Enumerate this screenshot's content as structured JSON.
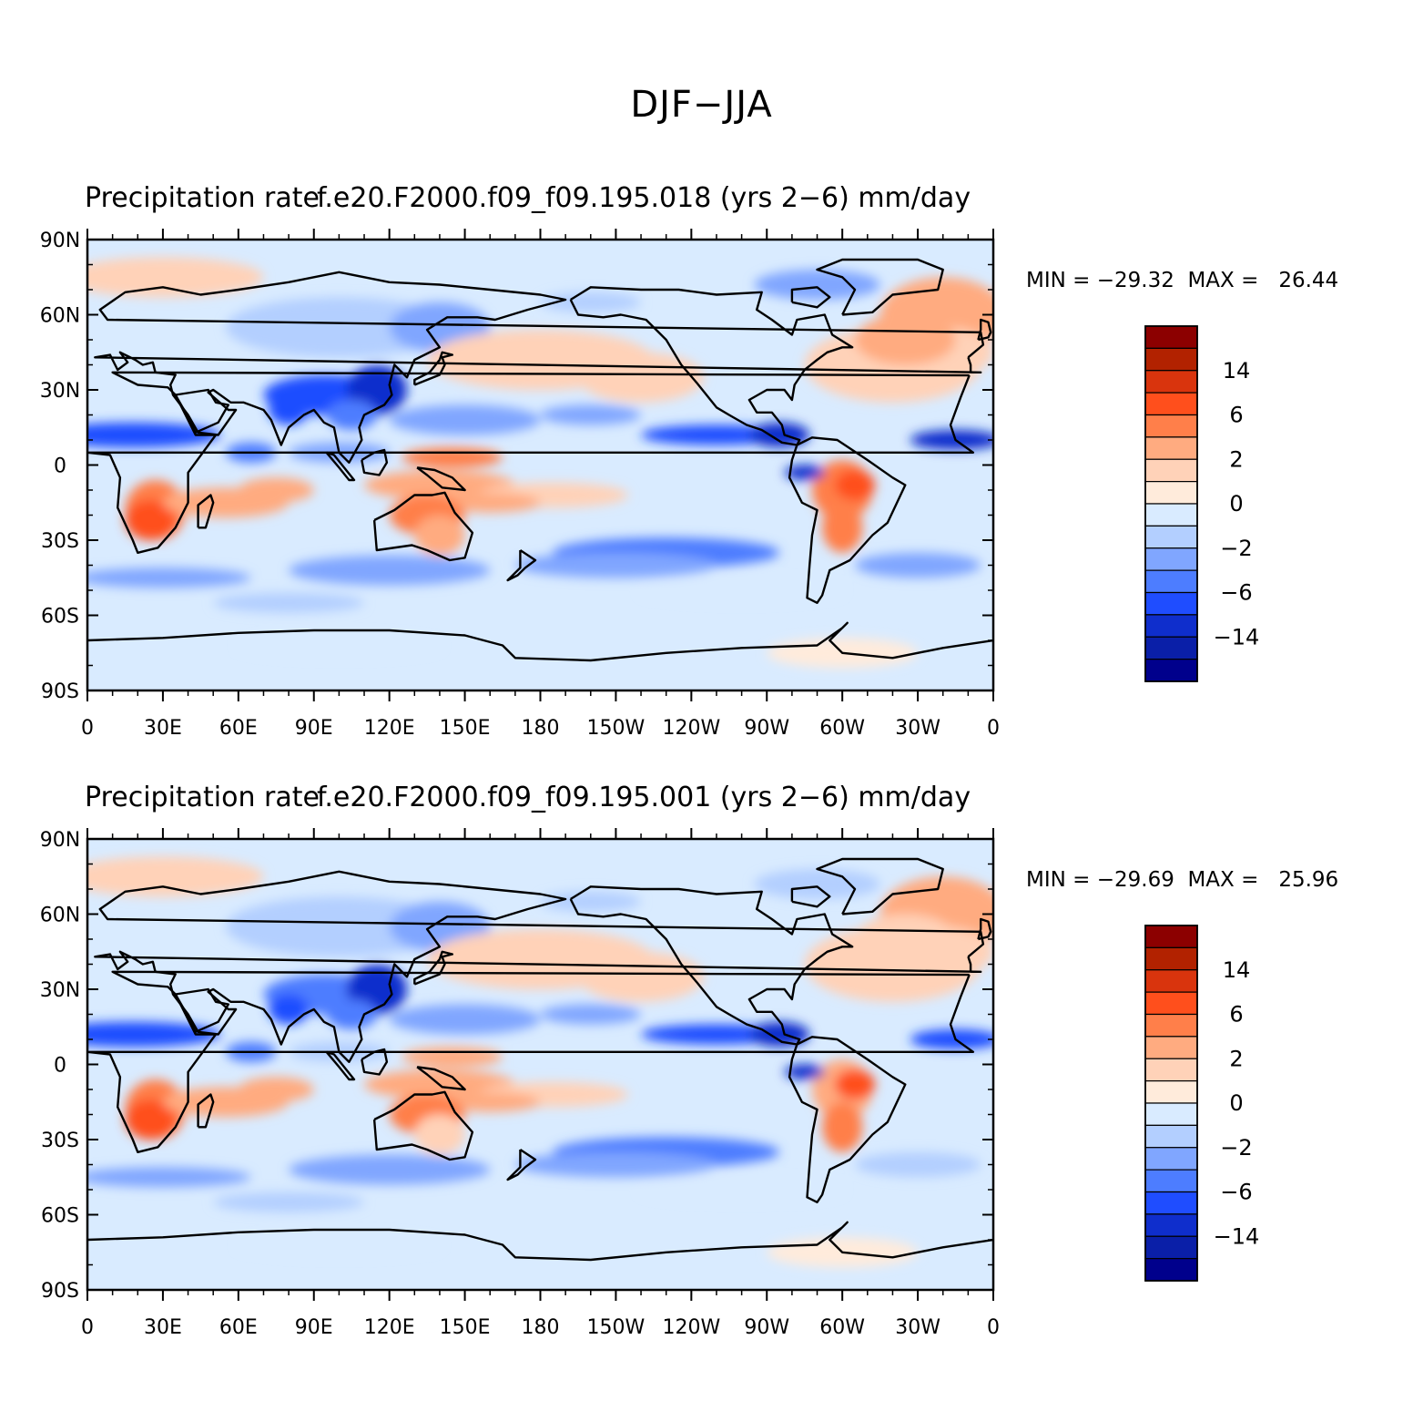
{
  "title": "DJF−JJA",
  "panels": [
    {
      "subtitle_left": "Precipitation rate",
      "subtitle_right": "f.e20.F2000.f09_f09.195.018 (yrs 2−6) mm/day",
      "stats": "MIN = −29.32  MAX =   26.44",
      "min": -29.32,
      "max": 26.44
    },
    {
      "subtitle_left": "Precipitation rate",
      "subtitle_right": "f.e20.F2000.f09_f09.195.001 (yrs 2−6) mm/day",
      "stats": "MIN = −29.69  MAX =   25.96",
      "min": -29.69,
      "max": 25.96
    }
  ],
  "map": {
    "lat_ticks": [
      "90N",
      "60N",
      "30N",
      "0",
      "30S",
      "60S",
      "90S"
    ],
    "lon_ticks": [
      "0",
      "30E",
      "60E",
      "90E",
      "120E",
      "150E",
      "180",
      "150W",
      "120W",
      "90W",
      "60W",
      "30W",
      "0"
    ],
    "lat_range": [
      -90,
      90
    ],
    "lon_range": [
      0,
      360
    ]
  },
  "colorbar": {
    "labels": [
      "14",
      "6",
      "2",
      "0",
      "−2",
      "−6",
      "−14"
    ],
    "colors_top_to_bottom": [
      "#8c0000",
      "#b22200",
      "#d9340d",
      "#ff4f1c",
      "#ff7f4a",
      "#ffab80",
      "#ffd2b8",
      "#ffebdb",
      "#d9ebff",
      "#b3cfff",
      "#80a6ff",
      "#4d7dff",
      "#1f4dff",
      "#0f2ecc",
      "#0a1fa8",
      "#00008c"
    ]
  }
}
